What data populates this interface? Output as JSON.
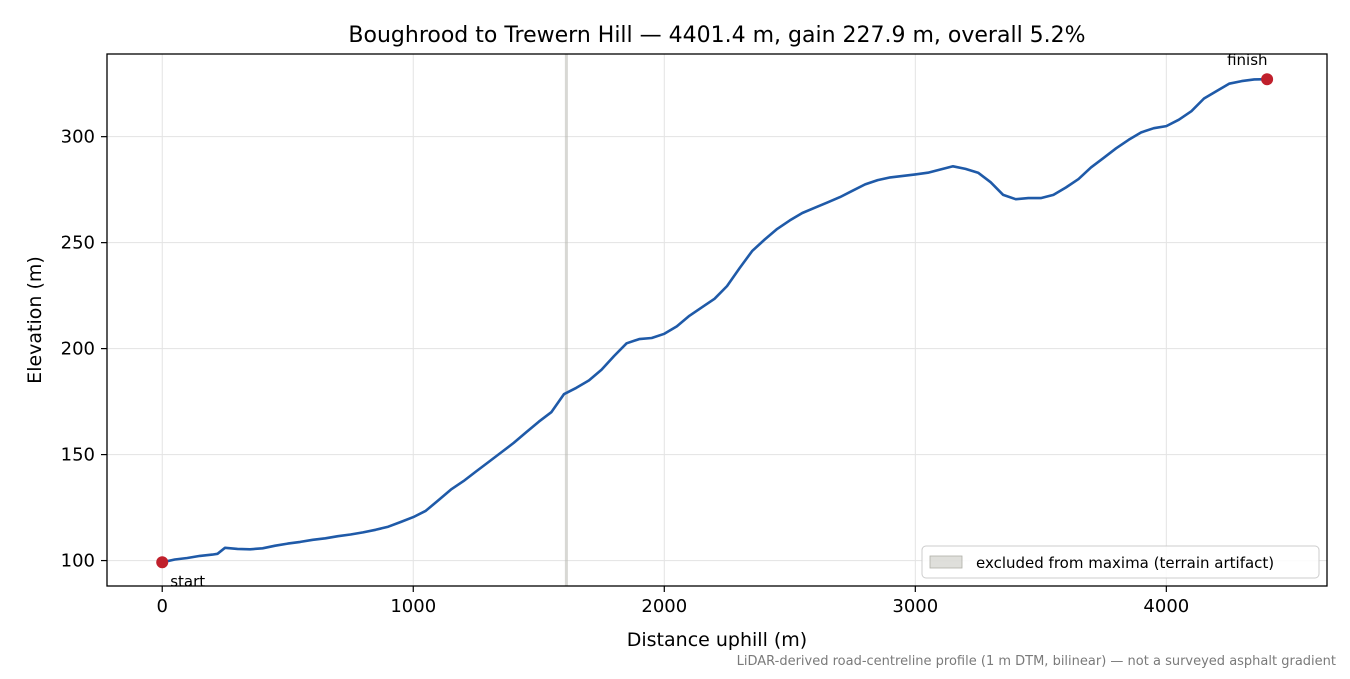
{
  "chart_data": {
    "type": "line",
    "title": "Boughrood to Trewern Hill — 4401.4 m, gain 227.9 m, overall 5.2%",
    "xlabel": "Distance uphill (m)",
    "ylabel": "Elevation (m)",
    "xlim": [
      -220,
      4640
    ],
    "ylim": [
      88,
      339
    ],
    "xticks": [
      0,
      1000,
      2000,
      3000,
      4000
    ],
    "xtick_labels": [
      "0",
      "1000",
      "2000",
      "3000",
      "4000"
    ],
    "yticks": [
      100,
      150,
      200,
      250,
      300
    ],
    "ytick_labels": [
      "100",
      "150",
      "200",
      "250",
      "300"
    ],
    "grid": true,
    "legend": {
      "placement": "lower right",
      "entries": [
        "excluded from maxima (terrain artifact)"
      ]
    },
    "excluded_x": 1610,
    "series": [
      {
        "color": "#1f5aa8",
        "points": [
          [
            0,
            99.2
          ],
          [
            50,
            100.5
          ],
          [
            100,
            101.2
          ],
          [
            150,
            102.2
          ],
          [
            200,
            102.8
          ],
          [
            220,
            103.2
          ],
          [
            250,
            106.0
          ],
          [
            300,
            105.5
          ],
          [
            350,
            105.3
          ],
          [
            400,
            105.8
          ],
          [
            450,
            107.0
          ],
          [
            500,
            108.0
          ],
          [
            550,
            108.8
          ],
          [
            600,
            109.8
          ],
          [
            650,
            110.5
          ],
          [
            700,
            111.5
          ],
          [
            750,
            112.3
          ],
          [
            800,
            113.3
          ],
          [
            850,
            114.5
          ],
          [
            900,
            116.0
          ],
          [
            950,
            118.2
          ],
          [
            1000,
            120.5
          ],
          [
            1050,
            123.5
          ],
          [
            1100,
            128.5
          ],
          [
            1150,
            133.5
          ],
          [
            1200,
            137.5
          ],
          [
            1250,
            142.0
          ],
          [
            1300,
            146.5
          ],
          [
            1350,
            151.0
          ],
          [
            1400,
            155.5
          ],
          [
            1450,
            160.5
          ],
          [
            1500,
            165.5
          ],
          [
            1550,
            170.0
          ],
          [
            1600,
            178.5
          ],
          [
            1650,
            181.5
          ],
          [
            1700,
            185.0
          ],
          [
            1750,
            190.0
          ],
          [
            1800,
            196.5
          ],
          [
            1850,
            202.5
          ],
          [
            1900,
            204.5
          ],
          [
            1950,
            205.0
          ],
          [
            2000,
            207.0
          ],
          [
            2050,
            210.5
          ],
          [
            2100,
            215.5
          ],
          [
            2150,
            219.5
          ],
          [
            2200,
            223.5
          ],
          [
            2250,
            229.5
          ],
          [
            2300,
            238.0
          ],
          [
            2350,
            246.0
          ],
          [
            2400,
            251.5
          ],
          [
            2450,
            256.5
          ],
          [
            2500,
            260.5
          ],
          [
            2550,
            264.0
          ],
          [
            2600,
            266.5
          ],
          [
            2650,
            269.0
          ],
          [
            2700,
            271.5
          ],
          [
            2750,
            274.5
          ],
          [
            2800,
            277.5
          ],
          [
            2850,
            279.5
          ],
          [
            2900,
            280.8
          ],
          [
            2950,
            281.5
          ],
          [
            3000,
            282.2
          ],
          [
            3050,
            283.0
          ],
          [
            3100,
            284.5
          ],
          [
            3150,
            286.0
          ],
          [
            3200,
            284.8
          ],
          [
            3250,
            283.0
          ],
          [
            3300,
            278.5
          ],
          [
            3350,
            272.5
          ],
          [
            3400,
            270.5
          ],
          [
            3450,
            271.0
          ],
          [
            3500,
            271.0
          ],
          [
            3550,
            272.5
          ],
          [
            3600,
            276.0
          ],
          [
            3650,
            280.0
          ],
          [
            3700,
            285.5
          ],
          [
            3750,
            290.0
          ],
          [
            3800,
            294.5
          ],
          [
            3850,
            298.5
          ],
          [
            3900,
            302.0
          ],
          [
            3950,
            304.0
          ],
          [
            4000,
            305.0
          ],
          [
            4050,
            308.0
          ],
          [
            4100,
            312.0
          ],
          [
            4150,
            318.0
          ],
          [
            4200,
            321.5
          ],
          [
            4250,
            325.0
          ],
          [
            4300,
            326.2
          ],
          [
            4350,
            327.0
          ],
          [
            4401.4,
            327.1
          ]
        ]
      }
    ],
    "markers": [
      {
        "label": "start",
        "x": 0,
        "y": 99.2,
        "color": "#c0202c"
      },
      {
        "label": "finish",
        "x": 4401.4,
        "y": 327.1,
        "color": "#c0202c"
      }
    ],
    "footnote": "LiDAR-derived road-centreline profile (1 m DTM, bilinear) — not a surveyed asphalt gradient"
  }
}
